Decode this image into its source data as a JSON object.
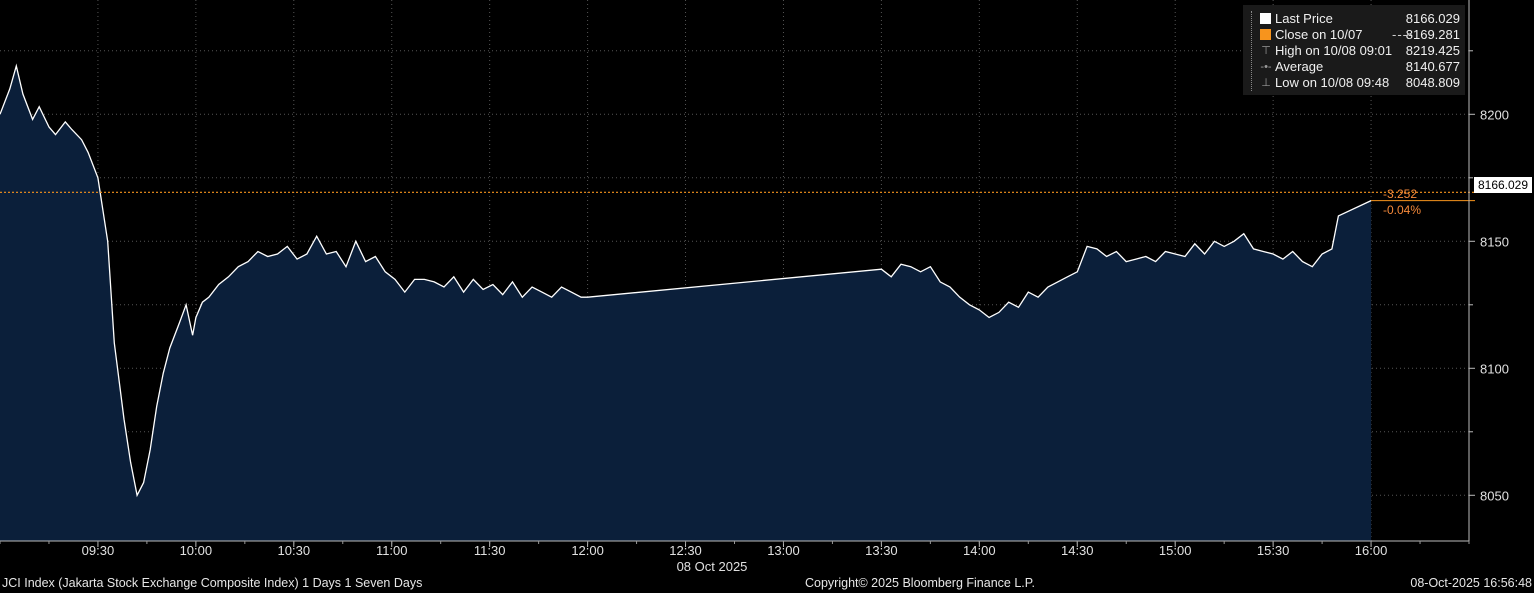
{
  "legend": {
    "items": [
      {
        "label": "Last Price",
        "value": "8166.029",
        "color": "#ffffff",
        "marker": "square"
      },
      {
        "label": "Close on 10/07",
        "value": "8169.281",
        "color": "#f7941d",
        "marker": "square",
        "dash": "----"
      },
      {
        "label": "High on 10/08 09:01",
        "value": "8219.425",
        "marker": "high-icon"
      },
      {
        "label": "Average",
        "value": "8140.677",
        "marker": "average-icon"
      },
      {
        "label": "Low on 10/08 09:48",
        "value": "8048.809",
        "marker": "low-icon"
      }
    ]
  },
  "last_price_tag": "8166.029",
  "change": {
    "abs": "-3.252",
    "pct": "-0.04%"
  },
  "footer": {
    "left": "JCI Index (Jakarta Stock Exchange Composite Index) 1 Days 1 Seven Days",
    "center": "Copyright© 2025 Bloomberg Finance L.P.",
    "right": "08-Oct-2025 16:56:48"
  },
  "colors": {
    "area_fill": "#0b1f3a",
    "line": "#ffffff",
    "close_line": "#f7941d",
    "grid": "#555555"
  },
  "chart_data": {
    "type": "area",
    "x_unit": "time",
    "date_label": "08 Oct 2025",
    "x_ticks": [
      "09:30",
      "10:00",
      "10:30",
      "11:00",
      "11:30",
      "12:00",
      "12:30",
      "13:00",
      "13:30",
      "14:00",
      "14:30",
      "15:00",
      "15:30",
      "16:00"
    ],
    "y_ticks": [
      "8050",
      "8100",
      "8150",
      "8200"
    ],
    "ylim": [
      8032,
      8245
    ],
    "xlim": [
      "09:00",
      "16:30"
    ],
    "grid": true,
    "legend_position": "top-right",
    "reference_line": {
      "name": "Close on 10/07",
      "value": 8169.281
    },
    "series": [
      {
        "name": "Last Price",
        "x": [
          "09:00",
          "09:03",
          "09:05",
          "09:07",
          "09:10",
          "09:12",
          "09:15",
          "09:17",
          "09:20",
          "09:22",
          "09:25",
          "09:27",
          "09:30",
          "09:33",
          "09:35",
          "09:38",
          "09:40",
          "09:42",
          "09:44",
          "09:46",
          "09:48",
          "09:50",
          "09:52",
          "09:55",
          "09:57",
          "09:59",
          "10:00",
          "10:02",
          "10:04",
          "10:07",
          "10:10",
          "10:13",
          "10:16",
          "10:19",
          "10:22",
          "10:25",
          "10:28",
          "10:31",
          "10:34",
          "10:37",
          "10:40",
          "10:43",
          "10:46",
          "10:49",
          "10:52",
          "10:55",
          "10:58",
          "11:01",
          "11:04",
          "11:07",
          "11:10",
          "11:13",
          "11:16",
          "11:19",
          "11:22",
          "11:25",
          "11:28",
          "11:31",
          "11:34",
          "11:37",
          "11:40",
          "11:43",
          "11:46",
          "11:49",
          "11:52",
          "11:55",
          "11:58",
          "12:00",
          "13:30",
          "13:33",
          "13:36",
          "13:39",
          "13:42",
          "13:45",
          "13:48",
          "13:51",
          "13:54",
          "13:57",
          "14:00",
          "14:03",
          "14:06",
          "14:09",
          "14:12",
          "14:15",
          "14:18",
          "14:21",
          "14:24",
          "14:27",
          "14:30",
          "14:33",
          "14:36",
          "14:39",
          "14:42",
          "14:45",
          "14:48",
          "14:51",
          "14:54",
          "14:57",
          "15:00",
          "15:03",
          "15:06",
          "15:09",
          "15:12",
          "15:15",
          "15:18",
          "15:21",
          "15:24",
          "15:27",
          "15:30",
          "15:33",
          "15:36",
          "15:39",
          "15:42",
          "15:45",
          "15:48",
          "15:50",
          "16:00"
        ],
        "values": [
          8200,
          8210,
          8219,
          8208,
          8198,
          8203,
          8195,
          8192,
          8197,
          8194,
          8190,
          8185,
          8175,
          8150,
          8110,
          8080,
          8063,
          8050,
          8055,
          8068,
          8085,
          8098,
          8108,
          8118,
          8125,
          8113,
          8120,
          8126,
          8128,
          8133,
          8136,
          8140,
          8142,
          8146,
          8144,
          8145,
          8148,
          8143,
          8145,
          8152,
          8145,
          8146,
          8140,
          8150,
          8142,
          8144,
          8138,
          8135,
          8130,
          8135,
          8135,
          8134,
          8132,
          8136,
          8130,
          8135,
          8131,
          8133,
          8129,
          8134,
          8128,
          8132,
          8130,
          8128,
          8132,
          8130,
          8128,
          8128,
          8139,
          8136,
          8141,
          8140,
          8138,
          8140,
          8134,
          8132,
          8128,
          8125,
          8123,
          8120,
          8122,
          8126,
          8124,
          8130,
          8128,
          8132,
          8134,
          8136,
          8138,
          8148,
          8147,
          8144,
          8146,
          8142,
          8143,
          8144,
          8142,
          8146,
          8145,
          8144,
          8149,
          8145,
          8150,
          8148,
          8150,
          8153,
          8147,
          8146,
          8145,
          8143,
          8146,
          8142,
          8140,
          8145,
          8147,
          8160,
          8166.029
        ]
      }
    ]
  }
}
